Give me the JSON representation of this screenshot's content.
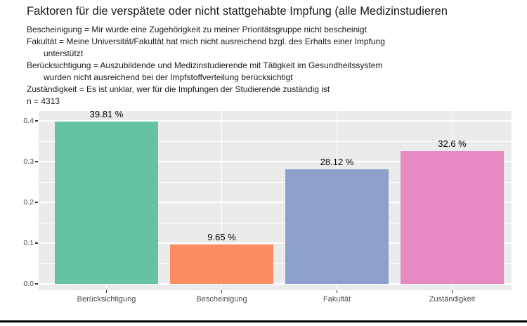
{
  "chart_data": {
    "type": "bar",
    "title": "Faktoren für die verspätete oder nicht stattgehabte Impfung (alle Medizinstudieren",
    "subtitle_lines": [
      {
        "text": "Bescheinigung = Mir wurde eine Zugehörigkeit zu meiner Prioritätsgruppe nicht bescheinigt",
        "indent": false
      },
      {
        "text": "Fakultät = Meine Universität/Fakultät hat mich nicht ausreichend bzgl. des Erhalts einer Impfung",
        "indent": false
      },
      {
        "text": "unterstützt",
        "indent": true
      },
      {
        "text": "Berücksichtigung = Auszubildende und Medizinstudierende mit Tätigkeit im Gesundheitssystem",
        "indent": false
      },
      {
        "text": "wurden nicht ausreichend bei der Impfstoffverteilung berücksichtigt",
        "indent": true
      },
      {
        "text": "Zuständigkeit = Es ist unklar, wer für die Impfungen der Studierende zuständig ist",
        "indent": false
      },
      {
        "text": "n = 4313",
        "indent": false
      }
    ],
    "categories": [
      "Berücksichtigung",
      "Bescheinigung",
      "Fakultät",
      "Zuständigkeit"
    ],
    "values": [
      0.3981,
      0.0965,
      0.2812,
      0.326
    ],
    "value_labels": [
      "39.81 %",
      "9.65 %",
      "28.12 %",
      "32.6 %"
    ],
    "colors": [
      "#66C2A5",
      "#FC8D62",
      "#8DA0CB",
      "#E78AC3"
    ],
    "xlabel": "",
    "ylabel": "",
    "y_tick_labels": [
      "0.0",
      "0.1",
      "0.2",
      "0.3",
      "0.4"
    ],
    "y_tick_values": [
      0,
      0.1,
      0.2,
      0.3,
      0.4
    ],
    "y_minor_values": [
      0.05,
      0.15,
      0.25,
      0.35
    ],
    "ylim": [
      0,
      0.42
    ],
    "grid": "horizontal major+minor, vertical major at category centers",
    "legend": "none",
    "panel_bg": "#EBEBEB",
    "gridline_color": "#FFFFFF",
    "axis_text_color": "#4D4D4D",
    "bottom_rule_color": "#000000"
  }
}
